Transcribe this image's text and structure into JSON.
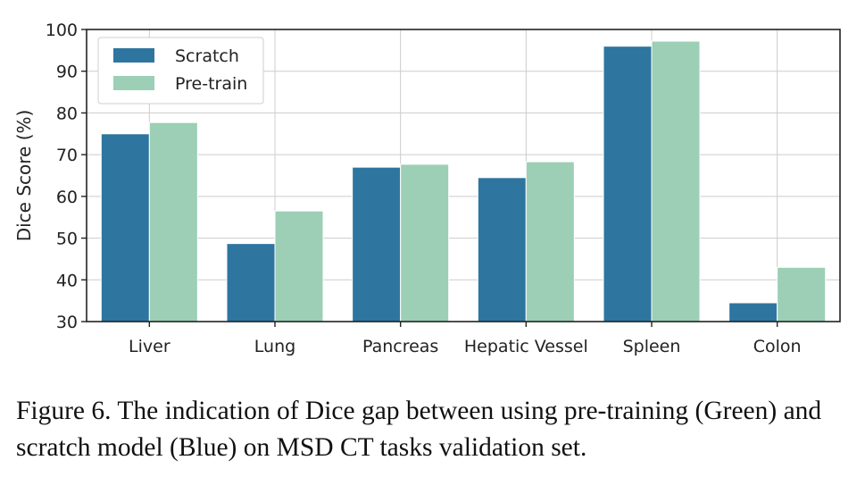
{
  "chart_data": {
    "type": "bar",
    "categories": [
      "Liver",
      "Lung",
      "Pancreas",
      "Hepatic Vessel",
      "Spleen",
      "Colon"
    ],
    "series": [
      {
        "name": "Scratch",
        "values": [
          75.0,
          48.7,
          67.0,
          64.5,
          96.0,
          34.5
        ],
        "color": "#2e75a0"
      },
      {
        "name": "Pre-train",
        "values": [
          77.7,
          56.5,
          67.7,
          68.3,
          97.2,
          43.0
        ],
        "color": "#9ccfb5"
      }
    ],
    "ylabel": "Dice Score (%)",
    "xlabel": "",
    "ylim": [
      30,
      100
    ],
    "yticks": [
      30,
      40,
      50,
      60,
      70,
      80,
      90,
      100
    ],
    "grid": true,
    "legend_position": "top-left"
  },
  "caption": "Figure 6.  The indication of Dice gap between using pre-training (Green) and scratch model (Blue) on MSD CT tasks validation set."
}
